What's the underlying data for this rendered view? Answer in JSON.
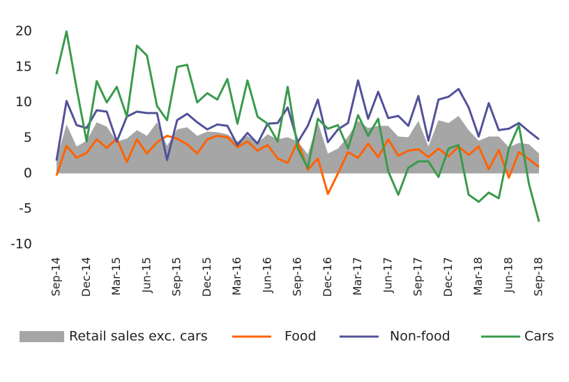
{
  "chart_data": {
    "type": "line",
    "categories": [
      "Sep-14",
      null,
      null,
      "Dec-14",
      null,
      null,
      "Mar-15",
      null,
      null,
      "Jun-15",
      null,
      null,
      "Sep-15",
      null,
      null,
      "Dec-15",
      null,
      null,
      "Mar-16",
      null,
      null,
      "Jun-16",
      null,
      null,
      "Sep-16",
      null,
      null,
      "Dec-16",
      null,
      null,
      "Mar-17",
      null,
      null,
      "Jun-17",
      null,
      null,
      "Sep-17",
      null,
      null,
      "Dec-17",
      null,
      null,
      "Mar-18",
      null,
      null,
      "Jun-18",
      null,
      null,
      "Sep-18"
    ],
    "series": [
      {
        "name": "Retail sales exc. cars",
        "color": "#a6a6a6",
        "style": "area",
        "values": [
          2,
          6.9,
          3.8,
          4.6,
          7.2,
          6.6,
          4.5,
          4.9,
          6.1,
          5.3,
          7.2,
          3.9,
          6.2,
          6.5,
          5.3,
          5.9,
          5.8,
          5.5,
          4.5,
          5.3,
          4.3,
          5.5,
          4.8,
          5.1,
          4.5,
          2.7,
          7.2,
          2.8,
          3.5,
          5.2,
          7.4,
          6.4,
          6.7,
          6.7,
          5.2,
          5.1,
          7.4,
          3.8,
          7.5,
          7.1,
          8.1,
          6.1,
          4.6,
          5.2,
          5.2,
          3.7,
          4.3,
          4.1,
          2.8
        ]
      },
      {
        "name": "Food",
        "color": "#ff6200",
        "style": "line",
        "values": [
          -0.3,
          3.9,
          2.2,
          2.9,
          4.8,
          3.6,
          4.9,
          1.6,
          4.8,
          2.8,
          4.4,
          5.3,
          4.9,
          4.1,
          2.8,
          4.8,
          5.3,
          5.1,
          3.7,
          4.5,
          3.2,
          4,
          2.1,
          1.5,
          4.5,
          0.5,
          2.1,
          -2.9,
          0,
          3,
          2.2,
          4.2,
          2.3,
          4.8,
          2.5,
          3.2,
          3.4,
          2.3,
          3.5,
          2.4,
          3.8,
          2.6,
          3.8,
          0.6,
          3.3,
          -0.6,
          3,
          2,
          0.9
        ]
      },
      {
        "name": "Non-food",
        "color": "#525199",
        "style": "line",
        "values": [
          1.8,
          10.2,
          6.8,
          6.4,
          8.9,
          8.7,
          4.5,
          8,
          8.7,
          8.5,
          8.5,
          1.9,
          7.5,
          8.4,
          7.2,
          6.2,
          6.9,
          6.7,
          4,
          5.7,
          4.2,
          7,
          7.1,
          9.3,
          4.4,
          6.7,
          10.4,
          4.4,
          6.2,
          7.1,
          13.1,
          7.7,
          11.5,
          7.8,
          8.1,
          6.7,
          10.9,
          4.6,
          10.4,
          10.8,
          11.9,
          9.3,
          5.2,
          9.9,
          6.1,
          6.3,
          7.1,
          5.9,
          4.8
        ]
      },
      {
        "name": "Cars",
        "color": "#3a9a4b",
        "style": "line",
        "values": [
          14,
          20,
          12,
          4.5,
          13,
          10,
          12.2,
          8,
          18,
          16.6,
          9.5,
          7.5,
          15,
          15.3,
          10,
          11.3,
          10.4,
          13.3,
          7,
          13.1,
          8,
          7,
          4.5,
          12.2,
          3.5,
          0.8,
          7.7,
          6.3,
          6.8,
          3.5,
          8.2,
          5.3,
          7.7,
          0.3,
          -3,
          0.8,
          1.7,
          1.7,
          -0.5,
          3.5,
          4,
          -3,
          -4,
          -2.7,
          -3.5,
          3.5,
          6.8,
          -1.5,
          -6.8
        ]
      }
    ],
    "ylim": [
      -11,
      21
    ],
    "yticks": [
      -10,
      -5,
      0,
      5,
      10,
      15,
      20
    ],
    "grid": false,
    "legend": "bottom"
  }
}
